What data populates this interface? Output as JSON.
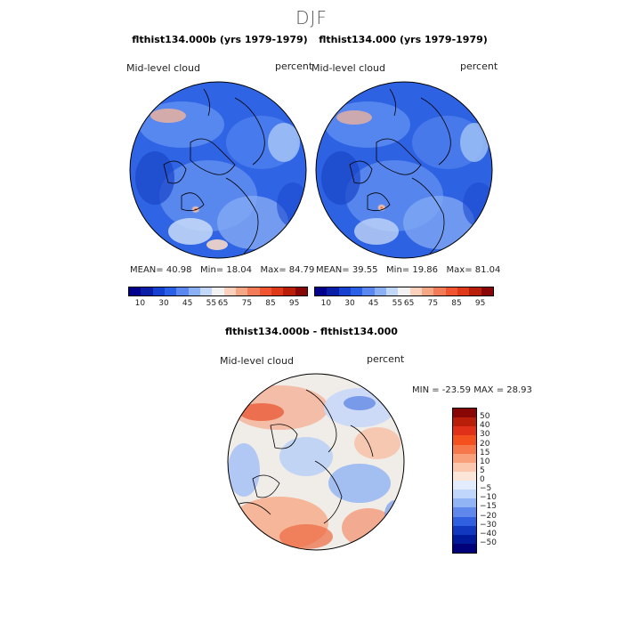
{
  "figure": {
    "season": "DJF"
  },
  "panels": [
    {
      "title": "flthist134.000b (yrs 1979-1979)",
      "variable": "Mid-level cloud",
      "units": "percent",
      "stats": {
        "mean_label": "MEAN=",
        "mean": "40.98",
        "min_label": "Min=",
        "min": "18.04",
        "max_label": "Max=",
        "max": "84.79"
      }
    },
    {
      "title": "flthist134.000 (yrs 1979-1979)",
      "variable": "Mid-level cloud",
      "units": "percent",
      "stats": {
        "mean_label": "MEAN=",
        "mean": "39.55",
        "min_label": "Min=",
        "min": "19.86",
        "max_label": "Max=",
        "max": "81.04"
      }
    }
  ],
  "diff_panel": {
    "title": "flthist134.000b - flthist134.000",
    "variable": "Mid-level cloud",
    "units": "percent",
    "minmax_label": "MIN = -23.59 MAX =  28.93"
  },
  "colorbar_top": {
    "colors": [
      "#00008c",
      "#0a1ea8",
      "#1640d0",
      "#2a60e6",
      "#5a88f0",
      "#8cb0f6",
      "#c2d8fa",
      "#f2f2f2",
      "#fbd0bc",
      "#f6a886",
      "#f27c58",
      "#ee5530",
      "#de3a1a",
      "#b81e0a",
      "#880606"
    ],
    "tick_labels": [
      "10",
      "30",
      "45",
      "55",
      "65",
      "75",
      "85",
      "95"
    ]
  },
  "colorbar_diff": {
    "colors": [
      "#880606",
      "#b81e0a",
      "#e0301a",
      "#f4501e",
      "#f6784a",
      "#f8a07a",
      "#fbc8ae",
      "#fbe4d8",
      "#e2ecfc",
      "#c0d6fa",
      "#90b4f4",
      "#6088ec",
      "#3060e0",
      "#1238c0",
      "#001a9c",
      "#00007a"
    ],
    "tick_labels": [
      "50",
      "40",
      "30",
      "20",
      "15",
      "10",
      "5",
      "0",
      "−5",
      "−10",
      "−15",
      "−20",
      "−30",
      "−40",
      "−50"
    ]
  },
  "maps": {
    "legend_icons": [
      "polar-map-panel-1",
      "polar-map-panel-2",
      "polar-map-difference"
    ]
  }
}
